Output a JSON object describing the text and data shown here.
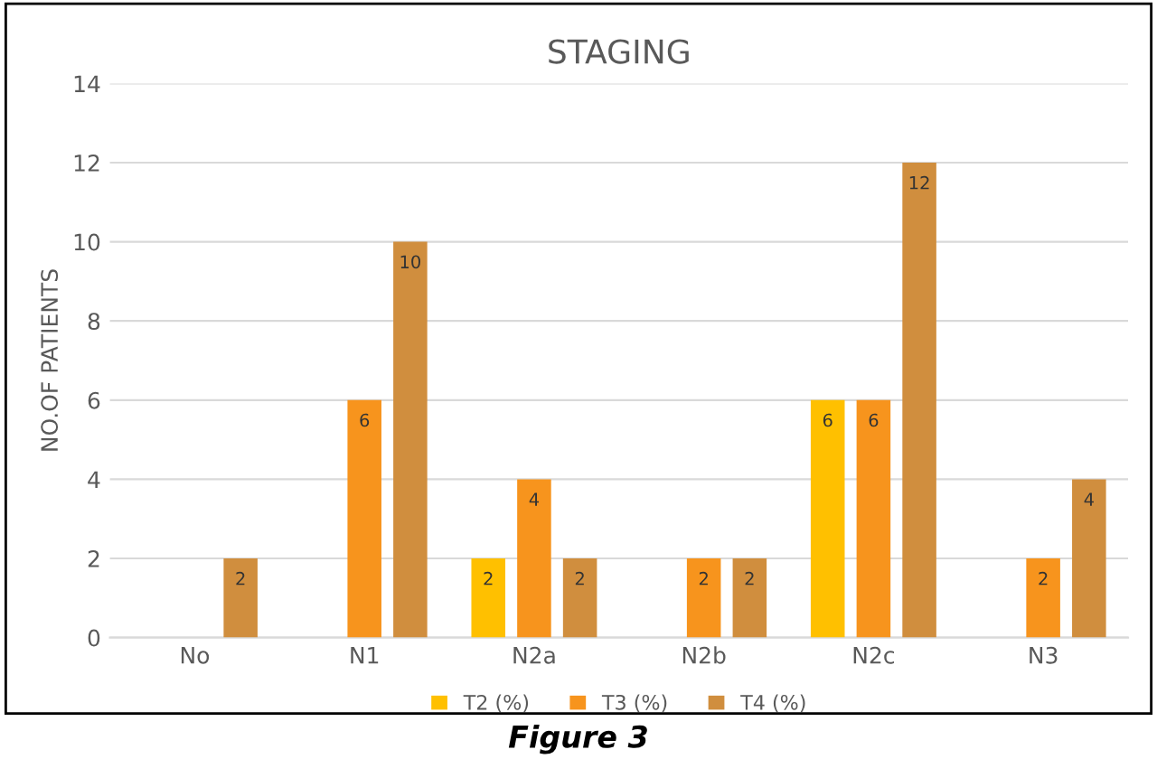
{
  "chart_data": {
    "type": "bar",
    "title": "STAGING",
    "ylabel": "NO.OF PATIENTS",
    "categories": [
      "No",
      "N1",
      "N2a",
      "N2b",
      "N2c",
      "N3"
    ],
    "series": [
      {
        "name": "T2 (%)",
        "color": "#ffc000",
        "values": [
          null,
          null,
          2,
          null,
          6,
          null
        ]
      },
      {
        "name": "T3 (%)",
        "color": "#f7941d",
        "values": [
          null,
          6,
          4,
          2,
          6,
          2
        ]
      },
      {
        "name": "T4 (%)",
        "color": "#d08e3e",
        "values": [
          2,
          10,
          2,
          2,
          12,
          4
        ]
      }
    ],
    "ylim": [
      0,
      14
    ],
    "yticks": [
      0,
      2,
      4,
      6,
      8,
      10,
      12,
      14
    ],
    "grid": "y",
    "legend": "bottom",
    "data_labels": true,
    "annotations": [
      "Figure 3"
    ]
  }
}
